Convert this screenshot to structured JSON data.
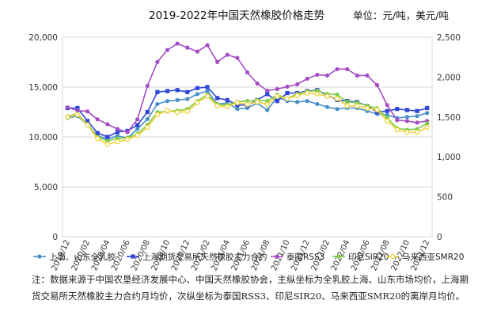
{
  "chart_data": {
    "type": "line",
    "title": "2019-2022年中国天然橡胶价格走势",
    "units_label": "单位：元/吨，美元/吨",
    "x": [
      "2019/12",
      "2020/01",
      "2020/02",
      "2020/03",
      "2020/04",
      "2020/05",
      "2020/06",
      "2020/07",
      "2020/08",
      "2020/09",
      "2020/10",
      "2020/11",
      "2020/12",
      "2021/01",
      "2021/02",
      "2021/03",
      "2021/04",
      "2021/05",
      "2021/06",
      "2021/07",
      "2021/08",
      "2021/09",
      "2021/10",
      "2021/11",
      "2021/12",
      "2022/01",
      "2022/02",
      "2022/03",
      "2022/04",
      "2022/05",
      "2022/06",
      "2022/07",
      "2022/08",
      "2022/09",
      "2022/10",
      "2022/11",
      "2022/12"
    ],
    "x_tick_labels": [
      "2019/12",
      "2020/02",
      "2020/04",
      "2020/06",
      "2020/08",
      "2020/10",
      "2020/12",
      "2021/02",
      "2021/04",
      "2021/06",
      "2021/08",
      "2021/10",
      "2021/12",
      "2022/02",
      "2022/04",
      "2022/06",
      "2022/08",
      "2022/10",
      "2022/12"
    ],
    "y_left": {
      "ticks": [
        "0",
        "5,000",
        "10,000",
        "15,000",
        "20,000"
      ],
      "lim": [
        0,
        20000
      ]
    },
    "y_right": {
      "ticks": [
        "0",
        "500",
        "1,000",
        "1,500",
        "2,000",
        "2,500"
      ],
      "lim": [
        0,
        2500
      ]
    },
    "legend_position": "bottom",
    "series": [
      {
        "name": "上海、山东全乳胶",
        "axis": "left",
        "color": "#4a90c8",
        "marker": "circle",
        "values": [
          11900,
          12100,
          11200,
          10100,
          9800,
          10100,
          9900,
          10800,
          11800,
          13300,
          13600,
          13700,
          13800,
          14300,
          14600,
          13300,
          13400,
          12800,
          12900,
          13400,
          12700,
          14000,
          13600,
          13500,
          13600,
          13300,
          13000,
          12800,
          12900,
          12900,
          12600,
          12300,
          12200,
          11900,
          12000,
          12100,
          12400
        ]
      },
      {
        "name": "上海期货交易所天然橡胶主力合约",
        "axis": "left",
        "color": "#2f46d6",
        "marker": "square",
        "values": [
          12900,
          12900,
          11600,
          10400,
          10000,
          10500,
          10600,
          11200,
          12500,
          14500,
          14600,
          14700,
          14500,
          14900,
          15000,
          13900,
          13700,
          13200,
          13200,
          13700,
          14300,
          13600,
          14400,
          14400,
          14600,
          14700,
          14200,
          13700,
          13600,
          13500,
          13100,
          12500,
          12600,
          12800,
          12700,
          12600,
          12900
        ]
      },
      {
        "name": "泰国RSS3",
        "axis": "right",
        "color": "#a44dc4",
        "marker": "circle",
        "values": [
          1620,
          1580,
          1570,
          1470,
          1410,
          1350,
          1310,
          1470,
          1890,
          2190,
          2340,
          2420,
          2370,
          2320,
          2400,
          2190,
          2280,
          2240,
          2060,
          1920,
          1830,
          1850,
          1880,
          1910,
          1980,
          2030,
          2020,
          2100,
          2100,
          2020,
          2020,
          1900,
          1650,
          1460,
          1450,
          1430,
          1450
        ]
      },
      {
        "name": "印尼SIR20",
        "axis": "right",
        "color": "#7ccc48",
        "marker": "circle",
        "values": [
          1510,
          1540,
          1410,
          1250,
          1200,
          1230,
          1240,
          1290,
          1400,
          1560,
          1570,
          1580,
          1600,
          1700,
          1780,
          1660,
          1650,
          1690,
          1700,
          1710,
          1700,
          1780,
          1730,
          1790,
          1820,
          1830,
          1790,
          1780,
          1690,
          1680,
          1640,
          1610,
          1490,
          1360,
          1340,
          1350,
          1420
        ]
      },
      {
        "name": "马来西亚SMR20",
        "axis": "right",
        "color": "#f0d23a",
        "marker": "circle",
        "values": [
          1500,
          1530,
          1400,
          1230,
          1160,
          1190,
          1220,
          1270,
          1370,
          1530,
          1580,
          1560,
          1570,
          1680,
          1760,
          1640,
          1630,
          1680,
          1660,
          1690,
          1660,
          1760,
          1730,
          1770,
          1800,
          1790,
          1760,
          1730,
          1640,
          1640,
          1610,
          1590,
          1450,
          1340,
          1310,
          1310,
          1370
        ]
      }
    ]
  },
  "note": "注：数据来源于中国农垦经济发展中心、中国天然橡胶协会，主纵坐标为全乳胶上海、山东市场均价，上海期货交易所天然橡胶主力合约月均价，次纵坐标为泰国RSS3、印尼SIR20、马来西亚SMR20的离岸月均价。"
}
